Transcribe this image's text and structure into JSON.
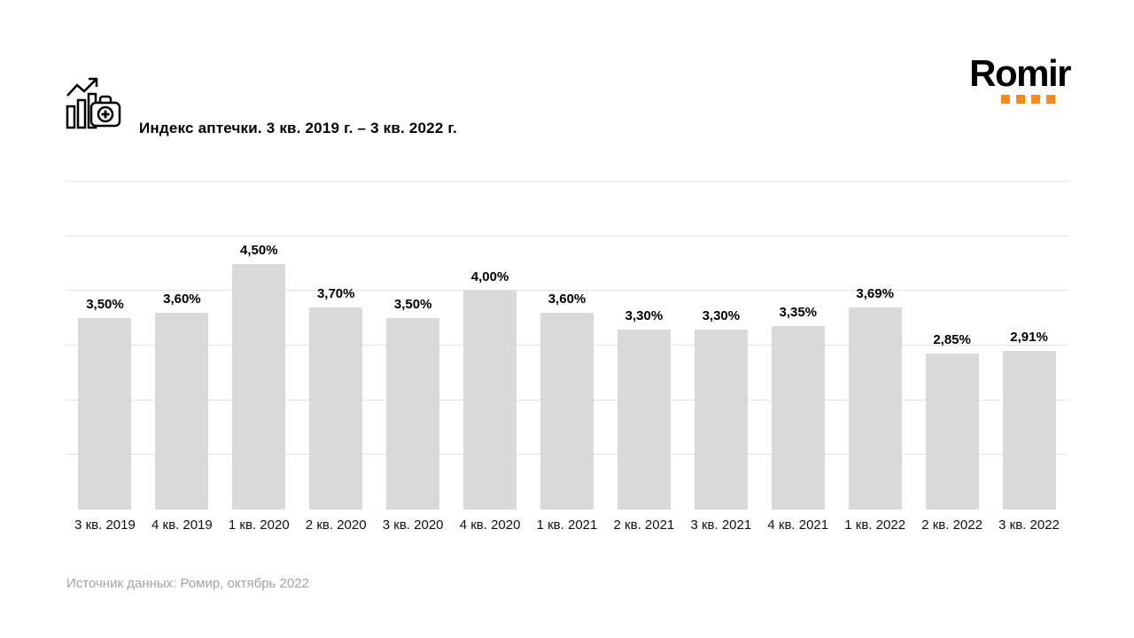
{
  "header": {
    "title": "Индекс аптечки. 3 кв. 2019 г. – 3 кв. 2022 г.",
    "logo_text": "Romir",
    "logo_dot_color": "#F68B1F",
    "logo_dot_count": 4
  },
  "chart_data": {
    "type": "bar",
    "title": "Индекс аптечки. 3 кв. 2019 г. – 3 кв. 2022 г.",
    "categories": [
      "3 кв. 2019",
      "4 кв. 2019",
      "1 кв. 2020",
      "2 кв. 2020",
      "3 кв. 2020",
      "4 кв. 2020",
      "1 кв. 2021",
      "2 кв. 2021",
      "3 кв. 2021",
      "4 кв. 2021",
      "1 кв. 2022",
      "2 кв. 2022",
      "3 кв. 2022"
    ],
    "values": [
      3.5,
      3.6,
      4.5,
      3.7,
      3.5,
      4.0,
      3.6,
      3.3,
      3.3,
      3.35,
      3.69,
      2.85,
      2.91
    ],
    "labels": [
      "3,50%",
      "3,60%",
      "4,50%",
      "3,70%",
      "3,50%",
      "4,00%",
      "3,60%",
      "3,30%",
      "3,30%",
      "3,35%",
      "3,69%",
      "2,85%",
      "2,91%"
    ],
    "xlabel": "",
    "ylabel": "",
    "ylim": [
      0,
      6
    ],
    "grid": true,
    "gridline_count": 6,
    "legend": "none",
    "bar_color": "#d9d9d9"
  },
  "footer": {
    "source": "Источник данных: Ромир, октябрь 2022"
  }
}
